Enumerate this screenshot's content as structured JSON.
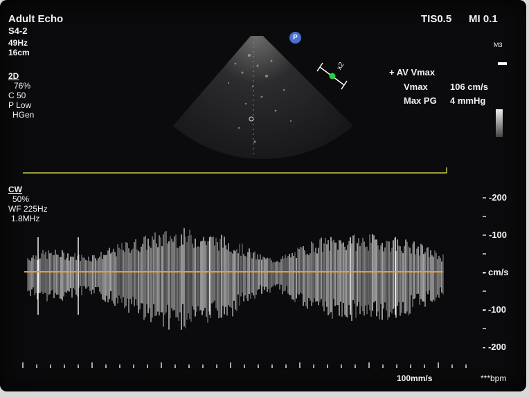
{
  "header": {
    "mode": "Adult Echo",
    "probe": "S4-2",
    "frame_rate": "49Hz",
    "depth": "16cm",
    "tis": "TIS0.5",
    "mi": "MI 0.1",
    "map_label": "M3"
  },
  "settings_2d": {
    "title": "2D",
    "gain": "76%",
    "compression": "C 50",
    "power": "P Low",
    "freq": "HGen"
  },
  "settings_cw": {
    "title": "CW",
    "gain": "50%",
    "wall_filter": "WF 225Hz",
    "freq": "1.8MHz"
  },
  "measurement": {
    "label": "AV Vmax",
    "marker": "+",
    "vmax_label": "Vmax",
    "vmax_value": "106 cm/s",
    "pg_label": "Max PG",
    "pg_value": "4 mmHg"
  },
  "probe_icon": "P",
  "cursor_label": "x2",
  "velocity_scale": {
    "labels": [
      "-200",
      "-100",
      "- cm/s",
      "- -100",
      "- -200"
    ]
  },
  "sweep_speed": "100mm/s",
  "heart_rate": "***bpm",
  "colors": {
    "baseline": "#e0a040",
    "marker": "#2ecc40",
    "accent_line": "#c8d04a"
  }
}
